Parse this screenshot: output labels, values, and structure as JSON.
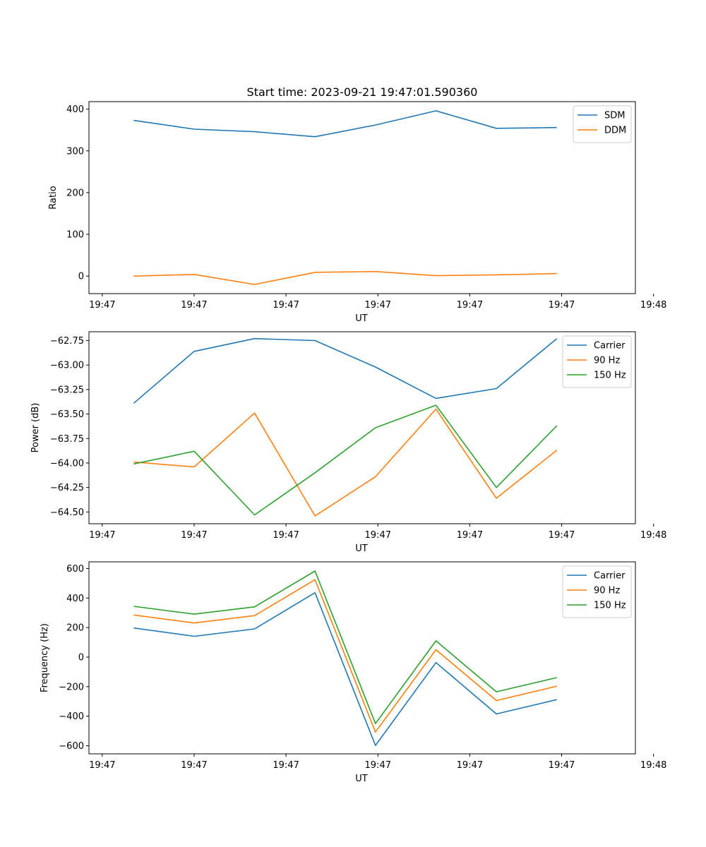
{
  "figure": {
    "title": "Start time: 2023-09-21 19:47:01.590360"
  },
  "chart_data": [
    {
      "type": "line",
      "title": "Start time: 2023-09-21 19:47:01.590360",
      "xlabel": "UT",
      "ylabel": "Ratio",
      "x": [
        1,
        2,
        3,
        4,
        5,
        6,
        7,
        8
      ],
      "xlim": [
        0.26,
        9.3
      ],
      "x_ticks": [
        0.48,
        2.0,
        3.52,
        5.04,
        6.56,
        8.08,
        9.6
      ],
      "x_tick_labels": [
        "19:47",
        "19:47",
        "19:47",
        "19:47",
        "19:47",
        "19:47",
        "19:48"
      ],
      "ylim": [
        -42,
        418
      ],
      "y_ticks": [
        0,
        100,
        200,
        300,
        400
      ],
      "y_tick_labels": [
        "0",
        "100",
        "200",
        "300",
        "400"
      ],
      "legend_position": "top-right",
      "series": [
        {
          "name": "SDM",
          "color": "#1f77b4",
          "values": [
            373,
            352,
            346,
            334,
            362,
            396,
            354,
            356
          ]
        },
        {
          "name": "DDM",
          "color": "#ff7f0e",
          "values": [
            0,
            4,
            -20,
            9,
            11,
            1,
            3,
            6
          ]
        }
      ]
    },
    {
      "type": "line",
      "xlabel": "UT",
      "ylabel": "Power (dB)",
      "x": [
        1,
        2,
        3,
        4,
        5,
        6,
        7,
        8
      ],
      "xlim": [
        0.26,
        9.3
      ],
      "x_ticks": [
        0.48,
        2.0,
        3.52,
        5.04,
        6.56,
        8.08,
        9.6
      ],
      "x_tick_labels": [
        "19:47",
        "19:47",
        "19:47",
        "19:47",
        "19:47",
        "19:47",
        "19:48"
      ],
      "ylim": [
        -64.62,
        -62.66
      ],
      "y_ticks": [
        -64.5,
        -64.25,
        -64.0,
        -63.75,
        -63.5,
        -63.25,
        -63.0,
        -62.75
      ],
      "y_tick_labels": [
        "−64.50",
        "−64.25",
        "−64.00",
        "−63.75",
        "−63.50",
        "−63.25",
        "−63.00",
        "−62.75"
      ],
      "legend_position": "top-right",
      "series": [
        {
          "name": "Carrier",
          "color": "#1f77b4",
          "values": [
            -63.39,
            -62.86,
            -62.73,
            -62.75,
            -63.02,
            -63.34,
            -63.24,
            -62.73
          ]
        },
        {
          "name": "90 Hz",
          "color": "#ff7f0e",
          "values": [
            -63.99,
            -64.04,
            -63.49,
            -64.54,
            -64.14,
            -63.45,
            -64.36,
            -63.87
          ]
        },
        {
          "name": "150 Hz",
          "color": "#2ca02c",
          "values": [
            -64.01,
            -63.88,
            -64.53,
            -64.1,
            -63.64,
            -63.41,
            -64.25,
            -63.62
          ]
        }
      ]
    },
    {
      "type": "line",
      "xlabel": "UT",
      "ylabel": "Frequency (Hz)",
      "x": [
        1,
        2,
        3,
        4,
        5,
        6,
        7,
        8
      ],
      "xlim": [
        0.26,
        9.3
      ],
      "x_ticks": [
        0.48,
        2.0,
        3.52,
        5.04,
        6.56,
        8.08,
        9.6
      ],
      "x_tick_labels": [
        "19:47",
        "19:47",
        "19:47",
        "19:47",
        "19:47",
        "19:47",
        "19:48"
      ],
      "ylim": [
        -655,
        645
      ],
      "y_ticks": [
        -600,
        -400,
        -200,
        0,
        200,
        400,
        600
      ],
      "y_tick_labels": [
        "−600",
        "−400",
        "−200",
        "0",
        "200",
        "400",
        "600"
      ],
      "legend_position": "top-right",
      "series": [
        {
          "name": "Carrier",
          "color": "#1f77b4",
          "values": [
            197,
            141,
            191,
            436,
            -598,
            -37,
            -385,
            -288
          ]
        },
        {
          "name": "90 Hz",
          "color": "#ff7f0e",
          "values": [
            285,
            231,
            281,
            524,
            -508,
            50,
            -294,
            -197
          ]
        },
        {
          "name": "150 Hz",
          "color": "#2ca02c",
          "values": [
            344,
            291,
            340,
            583,
            -450,
            110,
            -235,
            -139
          ]
        }
      ]
    }
  ]
}
